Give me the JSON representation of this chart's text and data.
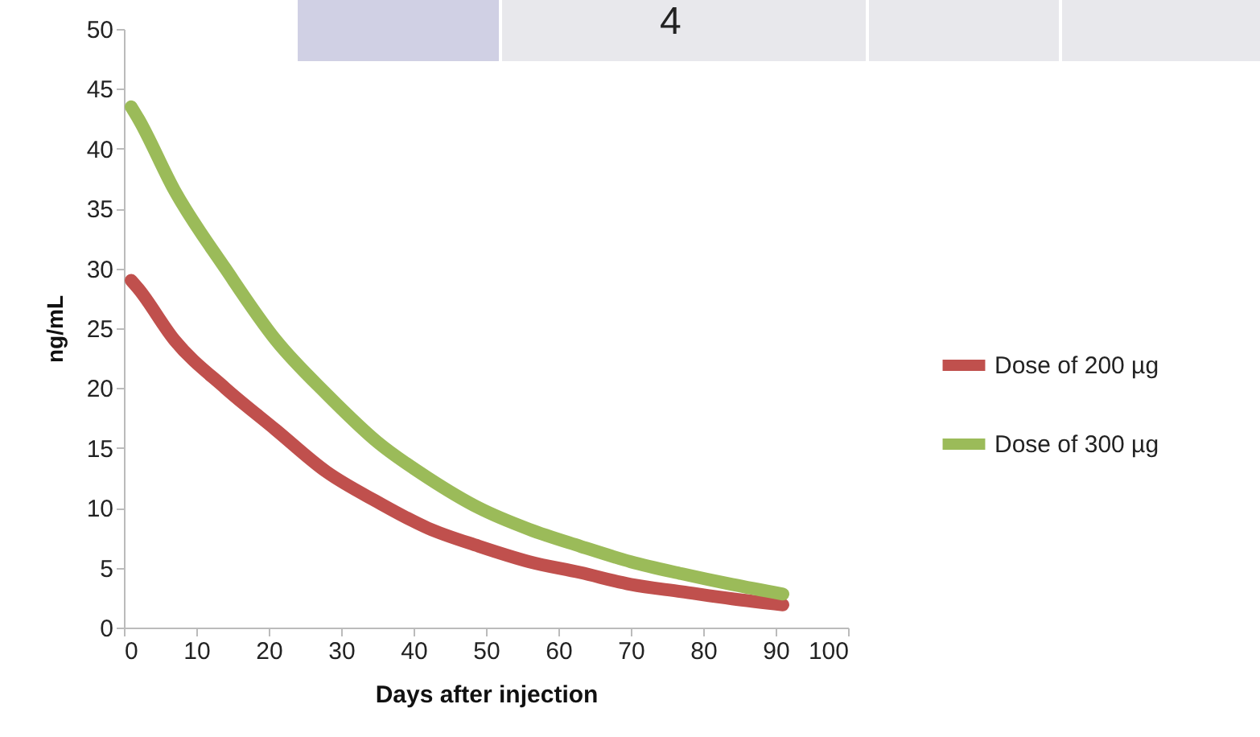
{
  "chart_data": {
    "type": "line",
    "xlabel": "Days after injection",
    "ylabel": "ng/mL",
    "annotations": [
      "4"
    ],
    "xlim": [
      0,
      100
    ],
    "xticks": [
      0,
      10,
      20,
      30,
      40,
      50,
      60,
      70,
      80,
      90,
      100
    ],
    "ylim": [
      0,
      50
    ],
    "yticks": [
      0,
      5,
      10,
      15,
      20,
      25,
      30,
      35,
      40,
      45,
      50
    ],
    "grid": false,
    "legend": "right",
    "marker": "none",
    "line_style": "solid",
    "series": [
      {
        "name": "Dose of 200 µg",
        "color": "#c0504d",
        "x": [
          1,
          2,
          7,
          14,
          21,
          28,
          35,
          42,
          49,
          56,
          63,
          70,
          77,
          84,
          91
        ],
        "values": [
          29,
          28.3,
          24,
          20,
          16.5,
          13,
          10.5,
          8.3,
          6.8,
          5.5,
          4.6,
          3.6,
          3,
          2.4,
          1.9
        ]
      },
      {
        "name": "Dose of 300 µg",
        "color": "#9bbb59",
        "x": [
          1,
          2,
          7,
          14,
          21,
          28,
          35,
          42,
          49,
          56,
          63,
          70,
          77,
          84,
          91
        ],
        "values": [
          43.5,
          42.5,
          36.5,
          30,
          24,
          19.5,
          15.5,
          12.5,
          10,
          8.2,
          6.8,
          5.5,
          4.5,
          3.6,
          2.8
        ]
      }
    ]
  }
}
